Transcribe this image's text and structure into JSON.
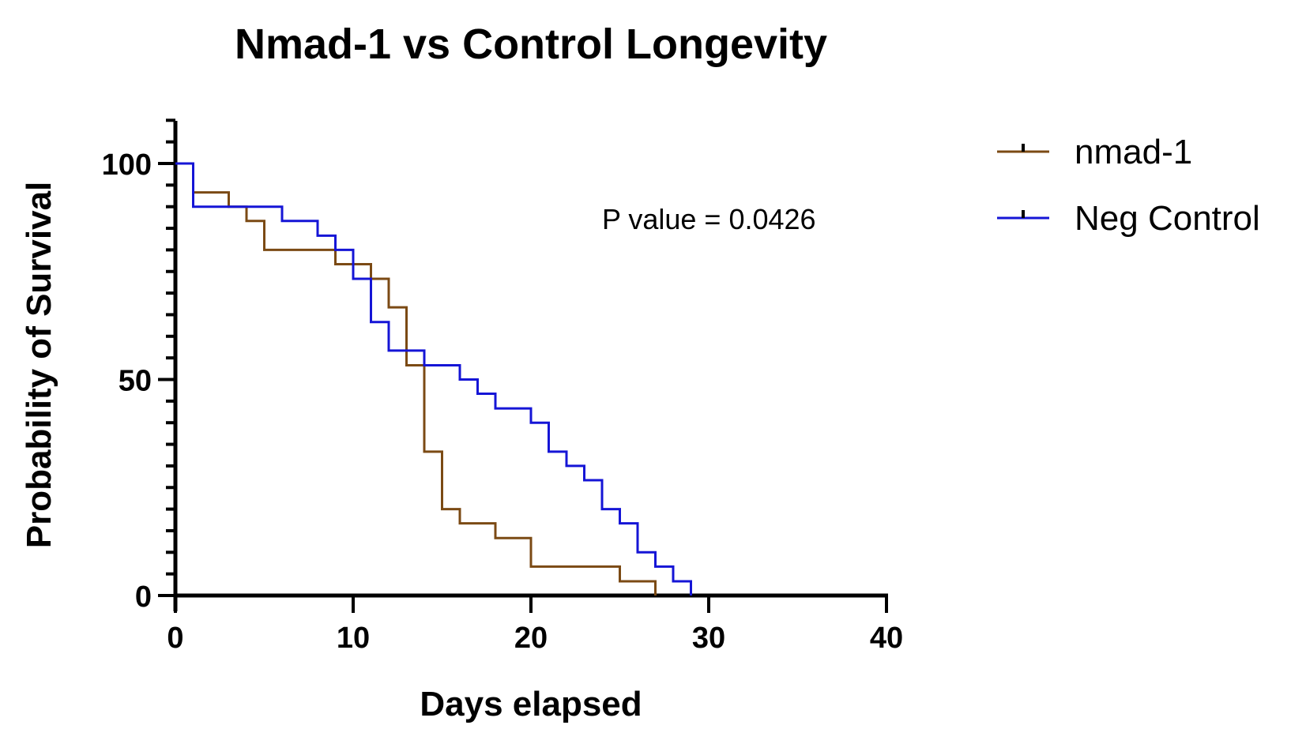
{
  "chart_data": {
    "type": "line",
    "subtype": "kaplan-meier-survival",
    "title": "Nmad-1 vs Control Longevity",
    "xlabel": "Days elapsed",
    "ylabel": "Probability of Survival",
    "xlim": [
      0,
      40
    ],
    "ylim": [
      0,
      110
    ],
    "x_ticks": [
      "0",
      "10",
      "20",
      "30",
      "40"
    ],
    "y_ticks": [
      "0",
      "50",
      "100"
    ],
    "grid": false,
    "legend_position": "top-right",
    "annotation": "P value = 0.0426",
    "series": [
      {
        "name": "nmad-1",
        "color": "#7B4A14",
        "step_points": [
          [
            0,
            100
          ],
          [
            1,
            93.3
          ],
          [
            3,
            90
          ],
          [
            4,
            86.7
          ],
          [
            5,
            80
          ],
          [
            9,
            76.7
          ],
          [
            11,
            73.3
          ],
          [
            12,
            66.7
          ],
          [
            13,
            53.3
          ],
          [
            14,
            33.3
          ],
          [
            15,
            20
          ],
          [
            16,
            16.7
          ],
          [
            18,
            13.3
          ],
          [
            20,
            6.7
          ],
          [
            25,
            3.3
          ],
          [
            27,
            0
          ]
        ]
      },
      {
        "name": "Neg Control",
        "color": "#1515D6",
        "step_points": [
          [
            0,
            100
          ],
          [
            1,
            90
          ],
          [
            6,
            86.7
          ],
          [
            8,
            83.3
          ],
          [
            9,
            80
          ],
          [
            10,
            73.3
          ],
          [
            11,
            63.3
          ],
          [
            12,
            56.7
          ],
          [
            14,
            53.3
          ],
          [
            16,
            50
          ],
          [
            17,
            46.7
          ],
          [
            18,
            43.3
          ],
          [
            20,
            40
          ],
          [
            21,
            33.3
          ],
          [
            22,
            30
          ],
          [
            23,
            26.7
          ],
          [
            24,
            20
          ],
          [
            25,
            16.7
          ],
          [
            26,
            10
          ],
          [
            27,
            6.7
          ],
          [
            28,
            3.3
          ],
          [
            29,
            0
          ]
        ]
      }
    ]
  }
}
